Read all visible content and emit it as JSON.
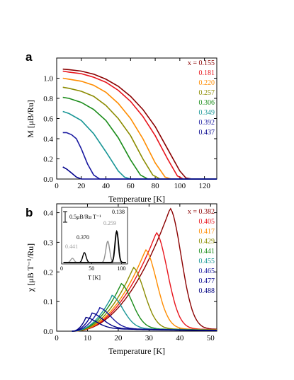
{
  "chart_data": [
    {
      "panel": "a",
      "type": "line",
      "xlabel": "Temperature [K]",
      "ylabel": "M [μB/Ru]",
      "xlim": [
        0,
        130
      ],
      "ylim": [
        0,
        1.2
      ],
      "xticks": [
        0,
        20,
        40,
        60,
        80,
        100,
        120
      ],
      "yticks": [
        0.0,
        0.2,
        0.4,
        0.6,
        0.8,
        1.0
      ],
      "legend_prefix": "x = ",
      "legend_placement": "top-right",
      "series": [
        {
          "name": "0.155",
          "color": "#8b0000",
          "x": [
            5,
            10,
            20,
            30,
            40,
            50,
            60,
            70,
            80,
            90,
            100,
            105,
            110,
            130
          ],
          "y": [
            1.09,
            1.085,
            1.07,
            1.04,
            0.99,
            0.92,
            0.82,
            0.69,
            0.52,
            0.3,
            0.08,
            0.01,
            0.0,
            0.0
          ]
        },
        {
          "name": "0.181",
          "color": "#e8141c",
          "x": [
            5,
            10,
            20,
            30,
            40,
            50,
            60,
            70,
            80,
            90,
            98,
            103,
            130
          ],
          "y": [
            1.07,
            1.06,
            1.045,
            1.01,
            0.96,
            0.88,
            0.77,
            0.62,
            0.43,
            0.2,
            0.03,
            0.0,
            0.0
          ]
        },
        {
          "name": "0.220",
          "color": "#ff8c00",
          "x": [
            5,
            10,
            20,
            30,
            40,
            50,
            60,
            70,
            80,
            88,
            93,
            130
          ],
          "y": [
            1.0,
            0.99,
            0.97,
            0.93,
            0.86,
            0.75,
            0.6,
            0.4,
            0.16,
            0.02,
            0.0,
            0.0
          ]
        },
        {
          "name": "0.257",
          "color": "#8b8b00",
          "x": [
            5,
            10,
            20,
            30,
            40,
            50,
            60,
            70,
            78,
            84,
            130
          ],
          "y": [
            0.91,
            0.9,
            0.87,
            0.82,
            0.73,
            0.6,
            0.43,
            0.2,
            0.04,
            0.0,
            0.0
          ]
        },
        {
          "name": "0.306",
          "color": "#1a8c1a",
          "x": [
            5,
            10,
            20,
            30,
            40,
            50,
            60,
            68,
            74,
            130
          ],
          "y": [
            0.81,
            0.8,
            0.76,
            0.69,
            0.58,
            0.41,
            0.19,
            0.04,
            0.0,
            0.0
          ]
        },
        {
          "name": "0.349",
          "color": "#199696",
          "x": [
            5,
            10,
            20,
            30,
            40,
            50,
            55,
            60,
            130
          ],
          "y": [
            0.67,
            0.65,
            0.58,
            0.45,
            0.27,
            0.08,
            0.02,
            0.0,
            0.0
          ]
        },
        {
          "name": "0.392",
          "color": "#1a1aa0",
          "x": [
            5,
            8,
            12,
            16,
            20,
            25,
            30,
            35,
            130
          ],
          "y": [
            0.46,
            0.46,
            0.44,
            0.4,
            0.3,
            0.15,
            0.04,
            0.0,
            0.0
          ]
        },
        {
          "name": "0.437",
          "color": "#00008b",
          "x": [
            5,
            8,
            12,
            16,
            20,
            130
          ],
          "y": [
            0.12,
            0.1,
            0.06,
            0.02,
            0.0,
            0.0
          ]
        }
      ]
    },
    {
      "panel": "b",
      "type": "line",
      "xlabel": "Temperature [K]",
      "ylabel": "χ [μB T⁻¹/Ru]",
      "xlim": [
        0,
        52
      ],
      "ylim": [
        0,
        0.43
      ],
      "xticks": [
        0,
        10,
        20,
        30,
        40,
        50
      ],
      "yticks": [
        0.0,
        0.1,
        0.2,
        0.3,
        0.4
      ],
      "legend_prefix": "x = ",
      "legend_placement": "top-right",
      "series": [
        {
          "name": "0.382",
          "color": "#8b0000",
          "peak_T": 36.5,
          "peak_chi": 0.405
        },
        {
          "name": "0.405",
          "color": "#e8141c",
          "peak_T": 32.0,
          "peak_chi": 0.323
        },
        {
          "name": "0.417",
          "color": "#ff8c00",
          "peak_T": 28.5,
          "peak_chi": 0.265
        },
        {
          "name": "0.429",
          "color": "#8b8b00",
          "peak_T": 24.5,
          "peak_chi": 0.205
        },
        {
          "name": "0.441",
          "color": "#1a8c1a",
          "peak_T": 20.5,
          "peak_chi": 0.15
        },
        {
          "name": "0.455",
          "color": "#199696",
          "peak_T": 17.5,
          "peak_chi": 0.11
        },
        {
          "name": "0.465",
          "color": "#1a1aa0",
          "peak_T": 13.5,
          "peak_chi": 0.068
        },
        {
          "name": "0.477",
          "color": "#00008b",
          "peak_T": 11.0,
          "peak_chi": 0.05
        },
        {
          "name": "0.488",
          "color": "#000080",
          "peak_T": 9.0,
          "peak_chi": 0.035
        }
      ],
      "inset": {
        "xlabel": "T [K]",
        "xlim": [
          0,
          110
        ],
        "xticks": [
          0,
          50,
          100
        ],
        "scale_bar_label": "0.5μB/Ru T⁻¹",
        "series": [
          {
            "label": "0.441",
            "color": "#a0a0a0",
            "peak_T": 18
          },
          {
            "label": "0.370",
            "color": "#000000",
            "peak_T": 38
          },
          {
            "label": "0.259",
            "color": "#909090",
            "peak_T": 77
          },
          {
            "label": "0.138",
            "color": "#000000",
            "peak_T": 92
          }
        ]
      }
    }
  ]
}
